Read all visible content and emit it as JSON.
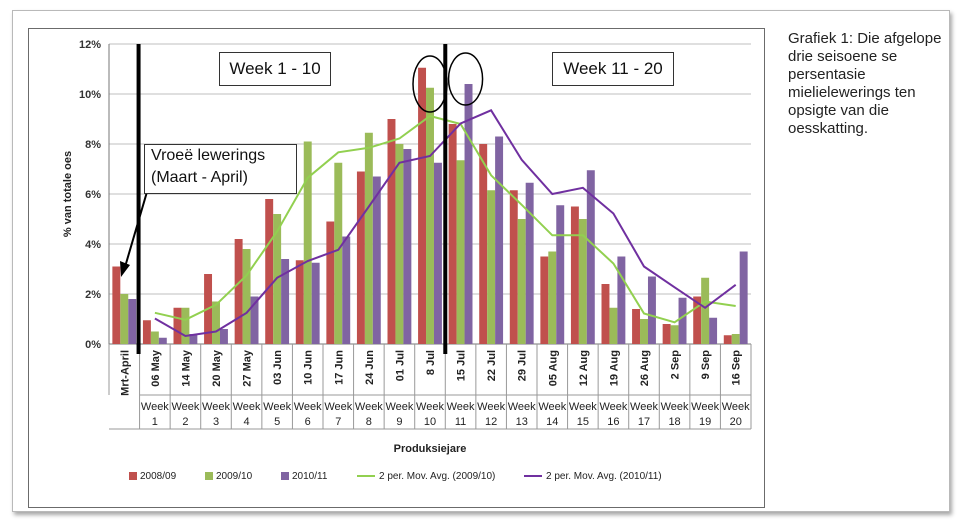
{
  "caption": "Grafiek 1: Die afgelope drie seisoene se persentasie mielielewerings ten opsigte van die oesskatting.",
  "chart_data": {
    "type": "bar",
    "title": "",
    "xlabel": "Produksiejare",
    "ylabel": "% van totale oes",
    "ylim": [
      0,
      12
    ],
    "yticks": [
      "0%",
      "2%",
      "4%",
      "6%",
      "8%",
      "10%",
      "12%"
    ],
    "grid": true,
    "legend_position": "bottom",
    "categories": [
      "Mrt-April",
      "06 May",
      "14 May",
      "20 May",
      "27 May",
      "03 Jun",
      "10 Jun",
      "17 Jun",
      "24 Jun",
      "01 Jul",
      "8 Jul",
      "15 Jul",
      "22 Jul",
      "29 Jul",
      "05 Aug",
      "12 Aug",
      "19 Aug",
      "26 Aug",
      "2 Sep",
      "9 Sep",
      "16 Sep"
    ],
    "week_labels": [
      "",
      "Week 1",
      "Week 2",
      "Week 3",
      "Week 4",
      "Week 5",
      "Week 6",
      "Week 7",
      "Week 8",
      "Week 9",
      "Week 10",
      "Week 11",
      "Week 12",
      "Week 13",
      "Week 14",
      "Week 15",
      "Week 16",
      "Week 17",
      "Week 18",
      "Week 19",
      "Week 20"
    ],
    "series": [
      {
        "name": "2008/09",
        "kind": "bar",
        "color": "#c0504d",
        "values": [
          3.1,
          0.95,
          1.45,
          2.8,
          4.2,
          5.8,
          3.35,
          4.9,
          6.9,
          9.0,
          11.05,
          8.8,
          8.0,
          6.15,
          3.5,
          5.5,
          2.4,
          1.4,
          0.8,
          1.9,
          0.35
        ]
      },
      {
        "name": "2009/10",
        "kind": "bar",
        "color": "#9bbb59",
        "values": [
          2.0,
          0.5,
          1.45,
          1.7,
          3.8,
          5.2,
          8.1,
          7.25,
          8.45,
          8.0,
          10.25,
          7.35,
          6.15,
          5.0,
          3.7,
          5.0,
          1.45,
          1.0,
          0.75,
          2.65,
          0.4
        ]
      },
      {
        "name": "2010/11",
        "kind": "bar",
        "color": "#8064a2",
        "values": [
          1.8,
          0.25,
          0.4,
          0.6,
          1.9,
          3.4,
          3.25,
          4.3,
          6.7,
          7.8,
          7.25,
          10.4,
          8.3,
          6.45,
          5.55,
          6.95,
          3.5,
          2.7,
          1.85,
          1.05,
          3.7
        ]
      },
      {
        "name": "2 per. Mov. Avg. (2009/10)",
        "kind": "line",
        "color": "#92d050",
        "values": [
          null,
          1.25,
          0.97,
          1.57,
          2.75,
          4.5,
          6.65,
          7.67,
          7.85,
          8.22,
          9.12,
          8.8,
          6.75,
          5.57,
          4.35,
          4.35,
          3.22,
          1.22,
          0.87,
          1.7,
          1.52
        ]
      },
      {
        "name": "2 per. Mov. Avg. (2010/11)",
        "kind": "line",
        "color": "#7030a0",
        "values": [
          null,
          1.02,
          0.32,
          0.5,
          1.25,
          2.65,
          3.32,
          3.77,
          5.5,
          7.25,
          7.52,
          8.82,
          9.35,
          7.37,
          6.0,
          6.25,
          5.22,
          3.1,
          2.27,
          1.45,
          2.37
        ]
      }
    ],
    "annotations": {
      "week_1_10": "Week 1 - 10",
      "week_11_20": "Week 11 - 20",
      "early_line1": "Vroeë lewerings",
      "early_line2": "(Maart - April)"
    }
  }
}
